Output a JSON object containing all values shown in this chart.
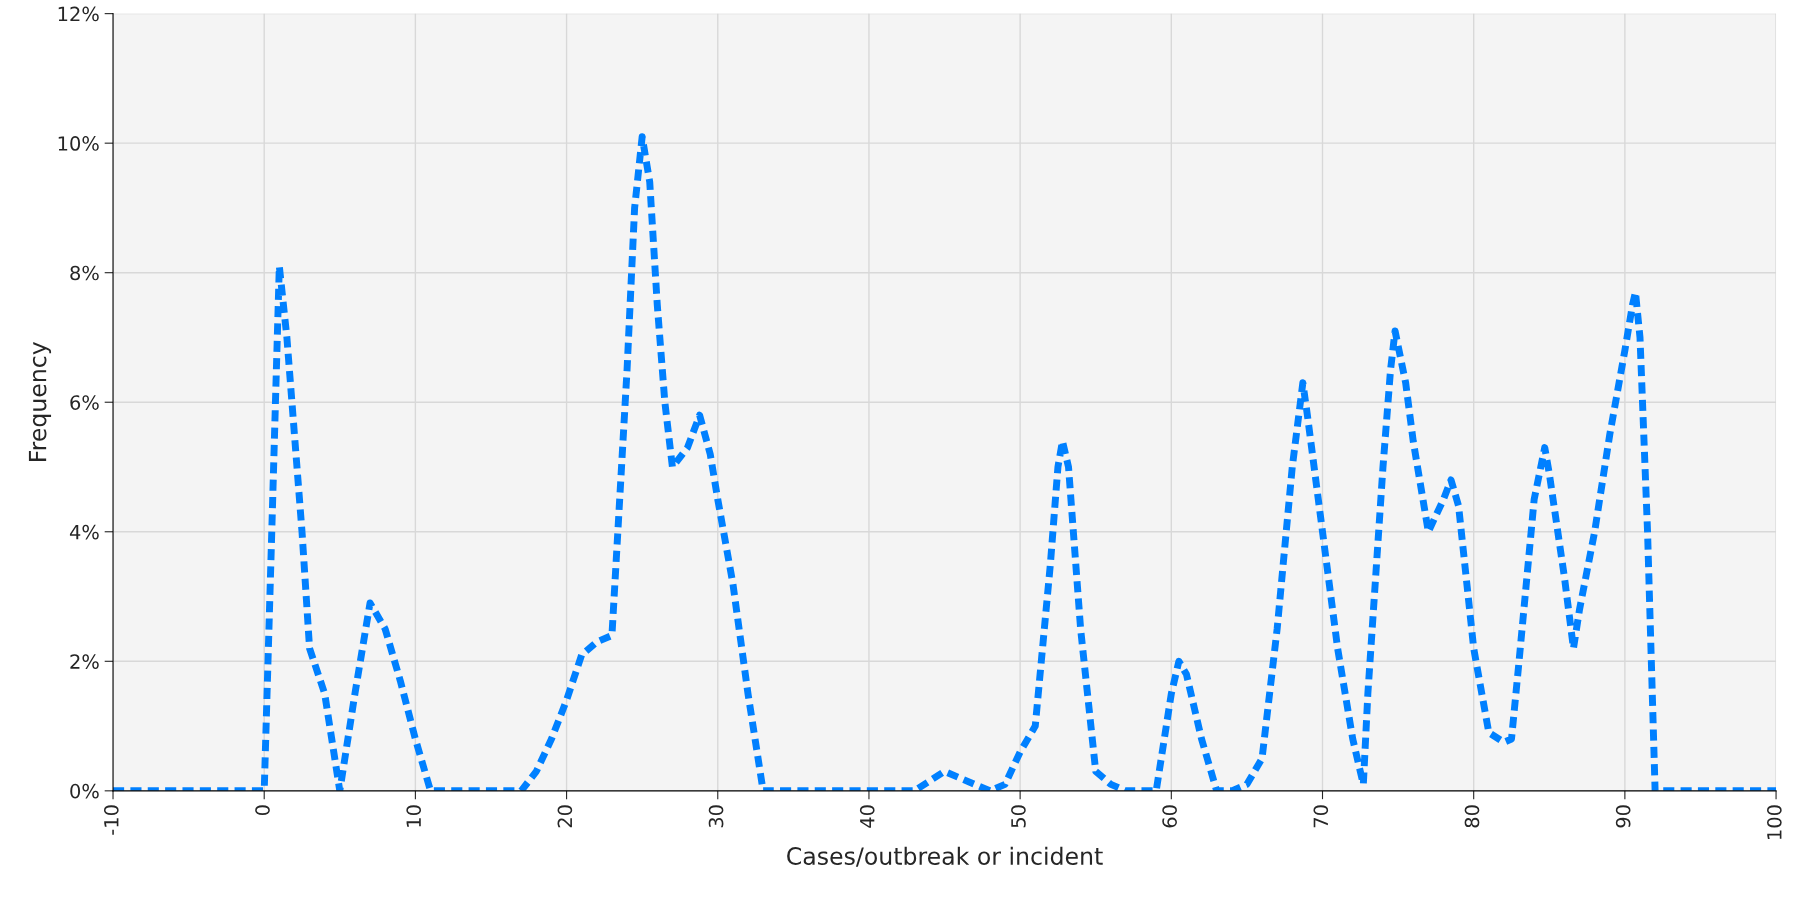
{
  "chart_data": {
    "type": "line",
    "xlabel": "Cases/outbreak or incident",
    "ylabel": "Frequency",
    "series": [
      {
        "color": "#0080ff",
        "x": [
          -10,
          0,
          0.5,
          1,
          1.5,
          2,
          2.5,
          3,
          4,
          5,
          6,
          7,
          8,
          9,
          10,
          11,
          17,
          18,
          19,
          20,
          21,
          22,
          23,
          24,
          24.5,
          25,
          25.5,
          26,
          26.5,
          27,
          28,
          28.8,
          29.5,
          30,
          31,
          32,
          33,
          43,
          45,
          47,
          48,
          49,
          50,
          51,
          52,
          52.5,
          52.8,
          53.2,
          54,
          55,
          56,
          57,
          59,
          60,
          60.5,
          61,
          62,
          63,
          64,
          65,
          66,
          67,
          68,
          68.7,
          69,
          70,
          71,
          72,
          72.7,
          73,
          74,
          74.5,
          74.8,
          75.5,
          76,
          77,
          78,
          78.5,
          79,
          80,
          81,
          82,
          82.5,
          83,
          84,
          84.7,
          85,
          86,
          86.6,
          87,
          88,
          89,
          90,
          90.5,
          90.7,
          91,
          91.5,
          92,
          100
        ],
        "values": [
          0,
          0,
          4,
          8.1,
          7,
          5.5,
          4,
          2.2,
          1.5,
          0,
          1.5,
          2.9,
          2.5,
          1.7,
          0.8,
          0,
          0,
          0.3,
          0.8,
          1.4,
          2.1,
          2.3,
          2.4,
          6.5,
          9,
          10.1,
          9.4,
          7.5,
          6,
          5,
          5.3,
          5.8,
          5.2,
          4.5,
          3.2,
          1.5,
          0,
          0,
          0.3,
          0.1,
          0,
          0.1,
          0.6,
          1,
          3.5,
          5,
          5.4,
          5,
          2.5,
          0.3,
          0.1,
          0,
          0,
          1.5,
          2,
          1.8,
          0.8,
          0,
          0,
          0.1,
          0.5,
          2.5,
          5,
          6.3,
          5.8,
          4,
          2.2,
          0.8,
          0.1,
          1.5,
          5,
          6.5,
          7.1,
          6.3,
          5.4,
          4,
          4.5,
          4.8,
          4.4,
          2.2,
          0.9,
          0.75,
          0.8,
          2,
          4.5,
          5.3,
          4.9,
          3.3,
          2.2,
          2.8,
          4,
          5.5,
          6.8,
          7.5,
          7.7,
          7,
          4,
          0,
          0
        ]
      }
    ],
    "xlim": [
      -10,
      100
    ],
    "xticks": [
      -10,
      0,
      10,
      20,
      30,
      40,
      50,
      60,
      70,
      80,
      90,
      100
    ],
    "ylim": [
      0,
      12
    ],
    "yticks": [
      {
        "value": 0,
        "label": "0%"
      },
      {
        "value": 2,
        "label": "2%"
      },
      {
        "value": 4,
        "label": "4%"
      },
      {
        "value": 6,
        "label": "6%"
      },
      {
        "value": 8,
        "label": "8%"
      },
      {
        "value": 10,
        "label": "10%"
      },
      {
        "value": 12,
        "label": "12%"
      }
    ],
    "grid": true,
    "line_style": "dashed",
    "marker": "none"
  }
}
